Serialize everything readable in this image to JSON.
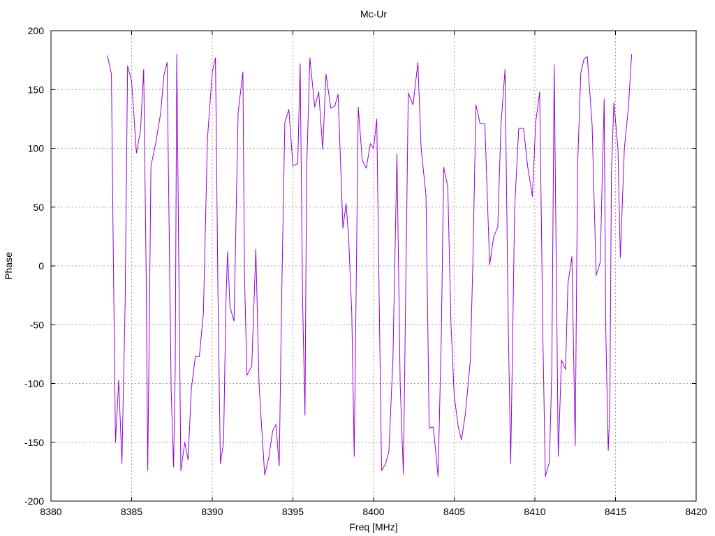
{
  "chart_data": {
    "type": "line",
    "title": "Mc-Ur",
    "xlabel": "Freq [MHz]",
    "ylabel": "Phase",
    "xlim": [
      8380,
      8420
    ],
    "ylim": [
      -200,
      200
    ],
    "x_ticks": [
      8380,
      8385,
      8390,
      8395,
      8400,
      8405,
      8410,
      8415,
      8420
    ],
    "y_ticks": [
      -200,
      -150,
      -100,
      -50,
      0,
      50,
      100,
      150,
      200
    ],
    "grid": true,
    "line_color": "#9400D3",
    "series": [
      {
        "points": [
          [
            8383.5,
            179
          ],
          [
            8383.75,
            163
          ],
          [
            8383.85,
            30
          ],
          [
            8384.0,
            -150
          ],
          [
            8384.2,
            -97
          ],
          [
            8384.4,
            -168
          ],
          [
            8384.6,
            -30
          ],
          [
            8384.75,
            170
          ],
          [
            8385.0,
            157
          ],
          [
            8385.3,
            96
          ],
          [
            8385.55,
            115
          ],
          [
            8385.75,
            167
          ],
          [
            8385.9,
            -5
          ],
          [
            8386.0,
            -174
          ],
          [
            8386.2,
            85
          ],
          [
            8386.5,
            105
          ],
          [
            8386.8,
            130
          ],
          [
            8387.0,
            162
          ],
          [
            8387.2,
            173
          ],
          [
            8387.45,
            -105
          ],
          [
            8387.6,
            -171
          ],
          [
            8387.7,
            -90
          ],
          [
            8387.8,
            180
          ],
          [
            8387.95,
            -30
          ],
          [
            8388.05,
            -174
          ],
          [
            8388.3,
            -150
          ],
          [
            8388.5,
            -165
          ],
          [
            8388.7,
            -105
          ],
          [
            8388.95,
            -77
          ],
          [
            8389.2,
            -77
          ],
          [
            8389.45,
            -40
          ],
          [
            8389.7,
            108
          ],
          [
            8390.0,
            165
          ],
          [
            8390.2,
            177
          ],
          [
            8390.35,
            -20
          ],
          [
            8390.5,
            -168
          ],
          [
            8390.7,
            -150
          ],
          [
            8390.85,
            -30
          ],
          [
            8390.95,
            12
          ],
          [
            8391.1,
            -35
          ],
          [
            8391.35,
            -47
          ],
          [
            8391.6,
            130
          ],
          [
            8391.9,
            165
          ],
          [
            8392.0,
            -10
          ],
          [
            8392.15,
            -93
          ],
          [
            8392.45,
            -85
          ],
          [
            8392.7,
            14
          ],
          [
            8392.9,
            -100
          ],
          [
            8393.05,
            -135
          ],
          [
            8393.25,
            -178
          ],
          [
            8393.5,
            -163
          ],
          [
            8393.75,
            -140
          ],
          [
            8393.95,
            -135
          ],
          [
            8394.15,
            -170
          ],
          [
            8394.3,
            -30
          ],
          [
            8394.5,
            122
          ],
          [
            8394.75,
            133
          ],
          [
            8395.0,
            85
          ],
          [
            8395.3,
            87
          ],
          [
            8395.45,
            172
          ],
          [
            8395.6,
            -30
          ],
          [
            8395.75,
            -127
          ],
          [
            8395.85,
            80
          ],
          [
            8396.05,
            177
          ],
          [
            8396.35,
            135
          ],
          [
            8396.6,
            148
          ],
          [
            8396.85,
            99
          ],
          [
            8397.05,
            163
          ],
          [
            8397.35,
            134
          ],
          [
            8397.6,
            136
          ],
          [
            8397.8,
            146
          ],
          [
            8398.1,
            32
          ],
          [
            8398.3,
            53
          ],
          [
            8398.45,
            25
          ],
          [
            8398.65,
            -40
          ],
          [
            8398.8,
            -162
          ],
          [
            8399.05,
            135
          ],
          [
            8399.3,
            90
          ],
          [
            8399.55,
            83
          ],
          [
            8399.8,
            104
          ],
          [
            8400.0,
            100
          ],
          [
            8400.2,
            125
          ],
          [
            8400.35,
            -30
          ],
          [
            8400.5,
            -174
          ],
          [
            8400.75,
            -168
          ],
          [
            8400.95,
            -158
          ],
          [
            8401.2,
            -80
          ],
          [
            8401.45,
            95
          ],
          [
            8401.65,
            -100
          ],
          [
            8401.85,
            -177
          ],
          [
            8402.15,
            147
          ],
          [
            8402.45,
            137
          ],
          [
            8402.75,
            173
          ],
          [
            8402.95,
            100
          ],
          [
            8403.25,
            60
          ],
          [
            8403.45,
            -138
          ],
          [
            8403.7,
            -137
          ],
          [
            8404.0,
            -179
          ],
          [
            8404.2,
            -60
          ],
          [
            8404.35,
            84
          ],
          [
            8404.6,
            67
          ],
          [
            8404.8,
            -50
          ],
          [
            8405.0,
            -110
          ],
          [
            8405.25,
            -137
          ],
          [
            8405.45,
            -148
          ],
          [
            8405.7,
            -125
          ],
          [
            8406.0,
            -80
          ],
          [
            8406.15,
            0
          ],
          [
            8406.35,
            137
          ],
          [
            8406.6,
            121
          ],
          [
            8406.9,
            121
          ],
          [
            8407.1,
            40
          ],
          [
            8407.2,
            1
          ],
          [
            8407.45,
            25
          ],
          [
            8407.7,
            33
          ],
          [
            8407.9,
            120
          ],
          [
            8408.15,
            167
          ],
          [
            8408.35,
            -50
          ],
          [
            8408.5,
            -168
          ],
          [
            8408.75,
            50
          ],
          [
            8409.0,
            117
          ],
          [
            8409.3,
            117
          ],
          [
            8409.55,
            85
          ],
          [
            8409.85,
            59
          ],
          [
            8410.05,
            122
          ],
          [
            8410.3,
            148
          ],
          [
            8410.5,
            -60
          ],
          [
            8410.65,
            -179
          ],
          [
            8410.9,
            -167
          ],
          [
            8411.05,
            -90
          ],
          [
            8411.2,
            171
          ],
          [
            8411.45,
            -162
          ],
          [
            8411.65,
            -80
          ],
          [
            8411.9,
            -88
          ],
          [
            8412.05,
            -15
          ],
          [
            8412.3,
            8
          ],
          [
            8412.5,
            -153
          ],
          [
            8412.65,
            85
          ],
          [
            8412.85,
            164
          ],
          [
            8413.05,
            176
          ],
          [
            8413.25,
            178
          ],
          [
            8413.55,
            120
          ],
          [
            8413.8,
            -8
          ],
          [
            8414.05,
            3
          ],
          [
            8414.3,
            142
          ],
          [
            8414.4,
            -55
          ],
          [
            8414.55,
            -157
          ],
          [
            8414.65,
            -120
          ],
          [
            8414.75,
            80
          ],
          [
            8414.9,
            139
          ],
          [
            8415.15,
            100
          ],
          [
            8415.3,
            7
          ],
          [
            8415.55,
            100
          ],
          [
            8415.8,
            135
          ],
          [
            8416.0,
            180
          ]
        ]
      }
    ]
  }
}
